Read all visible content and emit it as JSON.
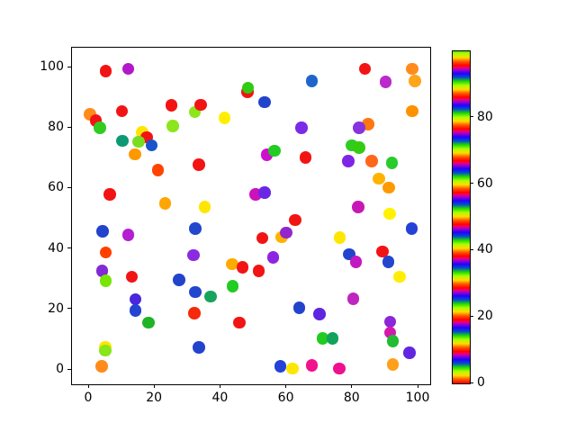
{
  "figure": {
    "background": "#ffffff"
  },
  "chart_data": {
    "type": "scatter",
    "title": "",
    "xlabel": "",
    "ylabel": "",
    "xlim": [
      -5,
      105
    ],
    "ylim": [
      -5,
      105
    ],
    "x_ticks": [
      0,
      20,
      40,
      60,
      80,
      100
    ],
    "y_ticks": [
      0,
      20,
      40,
      60,
      80,
      100
    ],
    "grid": false,
    "legend": "none",
    "marker": "circle",
    "marker_diameter_px": 13.5,
    "points": [
      {
        "x": 5.3,
        "y": 98.5,
        "c": "#f21414"
      },
      {
        "x": 12.1,
        "y": 99.2,
        "c": "#b217c9"
      },
      {
        "x": 10.3,
        "y": 85.2,
        "c": "#f21414"
      },
      {
        "x": 0.5,
        "y": 84.2,
        "c": "#ff8c1a"
      },
      {
        "x": 2.3,
        "y": 82.2,
        "c": "#f21414"
      },
      {
        "x": 3.5,
        "y": 79.8,
        "c": "#30cc22"
      },
      {
        "x": 25.3,
        "y": 87.2,
        "c": "#f21414"
      },
      {
        "x": 32.4,
        "y": 85.0,
        "c": "#8ce619"
      },
      {
        "x": 25.7,
        "y": 80.4,
        "c": "#8ce619"
      },
      {
        "x": 16.4,
        "y": 78.2,
        "c": "#ffe600"
      },
      {
        "x": 17.7,
        "y": 76.7,
        "c": "#f21414"
      },
      {
        "x": 15.3,
        "y": 75.2,
        "c": "#7add22"
      },
      {
        "x": 10.4,
        "y": 75.5,
        "c": "#0d9973"
      },
      {
        "x": 19.3,
        "y": 74.0,
        "c": "#1a53cc"
      },
      {
        "x": 14.2,
        "y": 71.0,
        "c": "#ff9900"
      },
      {
        "x": 48.3,
        "y": 91.6,
        "c": "#f21414"
      },
      {
        "x": 48.5,
        "y": 93.0,
        "c": "#2fcc11"
      },
      {
        "x": 67.9,
        "y": 95.2,
        "c": "#1f66cc"
      },
      {
        "x": 53.6,
        "y": 88.3,
        "c": "#2244cc"
      },
      {
        "x": 34.1,
        "y": 87.4,
        "c": "#f21414"
      },
      {
        "x": 41.4,
        "y": 83.0,
        "c": "#ffee00"
      },
      {
        "x": 64.8,
        "y": 79.8,
        "c": "#7a2be6"
      },
      {
        "x": 54.3,
        "y": 70.9,
        "c": "#cc11cc"
      },
      {
        "x": 56.6,
        "y": 72.2,
        "c": "#22cc22"
      },
      {
        "x": 66.0,
        "y": 69.9,
        "c": "#f21414"
      },
      {
        "x": 33.6,
        "y": 67.6,
        "c": "#f21414"
      },
      {
        "x": 84.0,
        "y": 99.2,
        "c": "#f21414"
      },
      {
        "x": 98.3,
        "y": 99.3,
        "c": "#ff8c1a"
      },
      {
        "x": 90.3,
        "y": 95.0,
        "c": "#bb28cc"
      },
      {
        "x": 99.2,
        "y": 95.2,
        "c": "#ffa519"
      },
      {
        "x": 98.3,
        "y": 85.2,
        "c": "#ff9100"
      },
      {
        "x": 85.0,
        "y": 81.0,
        "c": "#ff7711"
      },
      {
        "x": 82.2,
        "y": 79.8,
        "c": "#8833dd"
      },
      {
        "x": 80.0,
        "y": 74.0,
        "c": "#2fcc22"
      },
      {
        "x": 82.3,
        "y": 73.2,
        "c": "#33cc11"
      },
      {
        "x": 79.0,
        "y": 68.8,
        "c": "#7f26e6"
      },
      {
        "x": 86.0,
        "y": 68.8,
        "c": "#ff661a"
      },
      {
        "x": 92.2,
        "y": 68.2,
        "c": "#29cc29"
      },
      {
        "x": 21.2,
        "y": 65.8,
        "c": "#ff4400"
      },
      {
        "x": 6.5,
        "y": 57.8,
        "c": "#f21414"
      },
      {
        "x": 23.4,
        "y": 54.8,
        "c": "#ffa500"
      },
      {
        "x": 88.3,
        "y": 62.9,
        "c": "#ffb300"
      },
      {
        "x": 91.2,
        "y": 59.9,
        "c": "#ff9900"
      },
      {
        "x": 50.8,
        "y": 57.7,
        "c": "#cc11bb"
      },
      {
        "x": 53.6,
        "y": 58.4,
        "c": "#6a26e6"
      },
      {
        "x": 35.4,
        "y": 53.6,
        "c": "#ffe600"
      },
      {
        "x": 81.9,
        "y": 53.5,
        "c": "#c718b5"
      },
      {
        "x": 91.5,
        "y": 51.3,
        "c": "#fff200"
      },
      {
        "x": 62.8,
        "y": 49.2,
        "c": "#f21414"
      },
      {
        "x": 4.4,
        "y": 45.5,
        "c": "#2244cc"
      },
      {
        "x": 12.2,
        "y": 44.4,
        "c": "#b31fd1"
      },
      {
        "x": 32.5,
        "y": 46.5,
        "c": "#2448cc"
      },
      {
        "x": 98.2,
        "y": 46.5,
        "c": "#2442d6"
      },
      {
        "x": 76.4,
        "y": 43.4,
        "c": "#ffe600"
      },
      {
        "x": 52.9,
        "y": 43.3,
        "c": "#f21414"
      },
      {
        "x": 58.8,
        "y": 43.6,
        "c": "#ffb300"
      },
      {
        "x": 60.1,
        "y": 45.1,
        "c": "#9326cc"
      },
      {
        "x": 89.3,
        "y": 38.9,
        "c": "#f21414"
      },
      {
        "x": 79.2,
        "y": 37.9,
        "c": "#2244cc"
      },
      {
        "x": 81.3,
        "y": 35.4,
        "c": "#c119c1"
      },
      {
        "x": 91.1,
        "y": 35.4,
        "c": "#2247cc"
      },
      {
        "x": 31.9,
        "y": 37.6,
        "c": "#8a2be2"
      },
      {
        "x": 56.1,
        "y": 36.9,
        "c": "#8c26e0"
      },
      {
        "x": 5.3,
        "y": 38.6,
        "c": "#ff3f00"
      },
      {
        "x": 43.7,
        "y": 34.7,
        "c": "#ffaa00"
      },
      {
        "x": 46.9,
        "y": 33.6,
        "c": "#f21414"
      },
      {
        "x": 51.8,
        "y": 32.4,
        "c": "#f21414"
      },
      {
        "x": 4.2,
        "y": 32.5,
        "c": "#8429d6"
      },
      {
        "x": 13.3,
        "y": 30.5,
        "c": "#f21414"
      },
      {
        "x": 27.6,
        "y": 29.5,
        "c": "#2244cc"
      },
      {
        "x": 5.3,
        "y": 29.2,
        "c": "#77e600"
      },
      {
        "x": 94.6,
        "y": 30.5,
        "c": "#ffee00"
      },
      {
        "x": 80.4,
        "y": 23.2,
        "c": "#bf26bf"
      },
      {
        "x": 32.5,
        "y": 25.5,
        "c": "#2346cf"
      },
      {
        "x": 37.2,
        "y": 24.0,
        "c": "#17a35c"
      },
      {
        "x": 43.8,
        "y": 27.4,
        "c": "#22cc22"
      },
      {
        "x": 32.2,
        "y": 18.4,
        "c": "#f52a0a"
      },
      {
        "x": 45.9,
        "y": 15.4,
        "c": "#f21414"
      },
      {
        "x": 64.1,
        "y": 20.3,
        "c": "#2244cc"
      },
      {
        "x": 70.2,
        "y": 18.2,
        "c": "#5f26e0"
      },
      {
        "x": 14.3,
        "y": 23.0,
        "c": "#4a26dd"
      },
      {
        "x": 14.3,
        "y": 19.4,
        "c": "#2443d1"
      },
      {
        "x": 18.3,
        "y": 15.4,
        "c": "#1fb326"
      },
      {
        "x": 91.6,
        "y": 15.6,
        "c": "#8c26d9"
      },
      {
        "x": 91.6,
        "y": 12.1,
        "c": "#d619ae"
      },
      {
        "x": 71.2,
        "y": 10.1,
        "c": "#1fcc1f"
      },
      {
        "x": 74.2,
        "y": 10.1,
        "c": "#11a35c"
      },
      {
        "x": 92.5,
        "y": 9.3,
        "c": "#22bb33"
      },
      {
        "x": 97.5,
        "y": 5.3,
        "c": "#6226e0"
      },
      {
        "x": 33.6,
        "y": 7.2,
        "c": "#2244cc"
      },
      {
        "x": 5.2,
        "y": 7.3,
        "c": "#ffe600"
      },
      {
        "x": 5.2,
        "y": 6.1,
        "c": "#88e619"
      },
      {
        "x": 58.3,
        "y": 0.9,
        "c": "#2442d6"
      },
      {
        "x": 62.0,
        "y": 0.1,
        "c": "#ffe600"
      },
      {
        "x": 67.9,
        "y": 1.2,
        "c": "#f2128c"
      },
      {
        "x": 76.2,
        "y": 0.2,
        "c": "#ed1190"
      },
      {
        "x": 4.1,
        "y": 0.9,
        "c": "#ff8c1a"
      },
      {
        "x": 92.5,
        "y": 1.5,
        "c": "#ffa01a"
      }
    ],
    "colorbar": {
      "colormap": "prism",
      "range": [
        0,
        100
      ],
      "ticks": [
        0,
        20,
        40,
        60,
        80
      ],
      "cycles": 10.45,
      "cycle_colors": [
        "#ff0000",
        "#ff5400",
        "#ffdb00",
        "#aaff00",
        "#24db00",
        "#0054c7",
        "#2400ff",
        "#ab00c7",
        "#ff0057",
        "#ff0000"
      ],
      "cycle_fractions": [
        0,
        0.125,
        0.25,
        0.375,
        0.5,
        0.625,
        0.75,
        0.875,
        0.95,
        1
      ]
    }
  }
}
